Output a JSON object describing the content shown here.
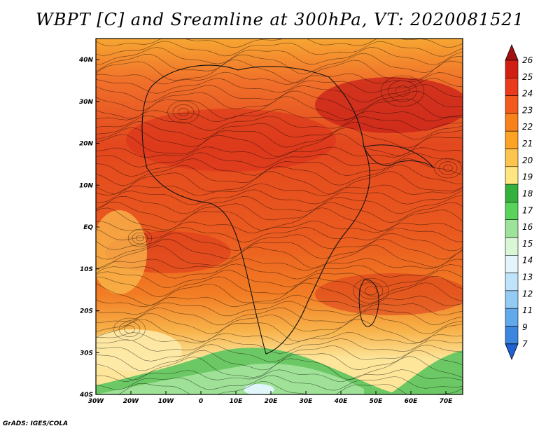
{
  "title": "WBPT [C] and Sreamline at 300hPa, VT: 2020081521",
  "credit": "GrADS: IGES/COLA",
  "axes": {
    "lon_ticks": [
      "30W",
      "20W",
      "10W",
      "0",
      "10E",
      "20E",
      "30E",
      "40E",
      "50E",
      "60E",
      "70E"
    ],
    "lat_ticks": [
      "40N",
      "30N",
      "20N",
      "10N",
      "EQ",
      "10S",
      "20S",
      "30S",
      "40S"
    ]
  },
  "colorbar": {
    "labels": [
      "26",
      "25",
      "24",
      "23",
      "22",
      "21",
      "20",
      "19",
      "18",
      "17",
      "16",
      "15",
      "14",
      "13",
      "12",
      "11",
      "9",
      "7"
    ],
    "colors": [
      "#a50f0f",
      "#d11f14",
      "#ea3b1c",
      "#f25b1d",
      "#f8811c",
      "#fca225",
      "#fdc44e",
      "#ffe680",
      "#34b03c",
      "#5ad35c",
      "#9ee39b",
      "#d9f7d5",
      "#e3f4fb",
      "#bfe3fa",
      "#93cbf3",
      "#62a9ec",
      "#3d86e0",
      "#1f62d4"
    ]
  }
}
